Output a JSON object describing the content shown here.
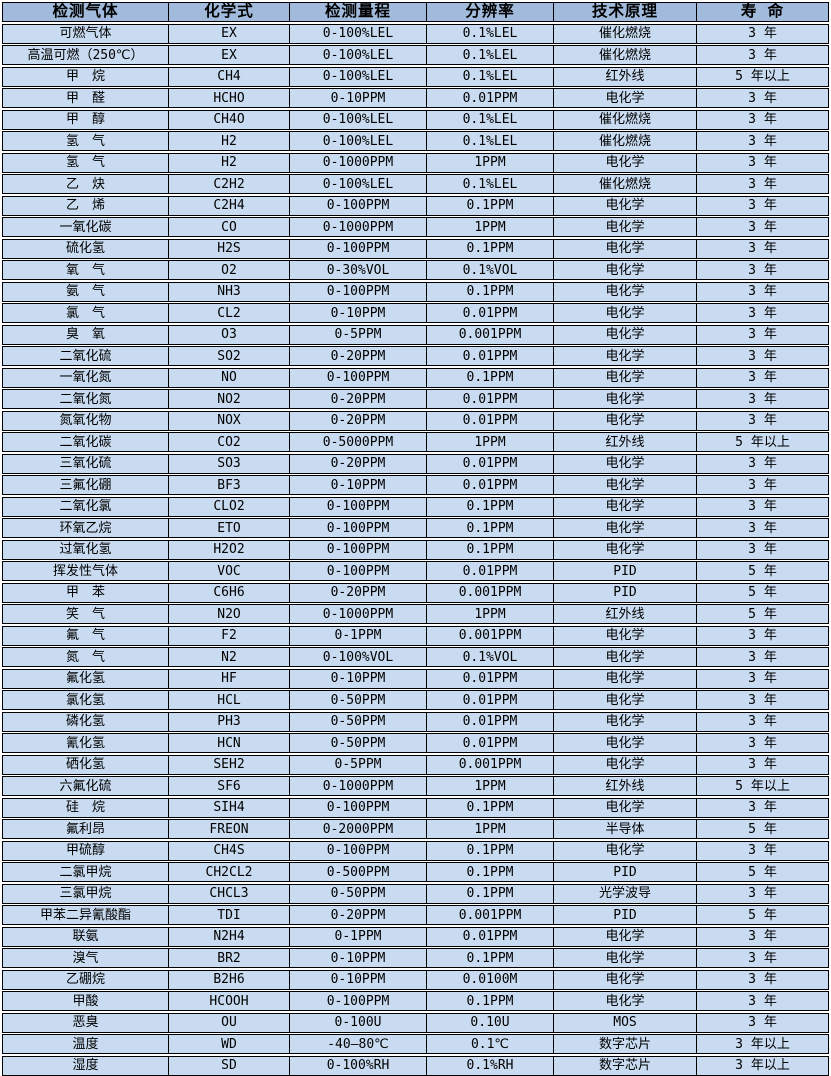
{
  "colors": {
    "header_bg": "#a2bbdc",
    "row_bg": "#c9dbf0",
    "border": "#000000",
    "gap": "#ffffff",
    "text": "#000000"
  },
  "table": {
    "column_keys": [
      "gas",
      "formula",
      "range",
      "resolution",
      "principle",
      "lifespan"
    ],
    "columns": [
      "检测气体",
      "化学式",
      "检测量程",
      "分辨率",
      "技术原理",
      "寿 命"
    ],
    "rows": [
      [
        "可燃气体",
        "EX",
        "0-100%LEL",
        "0.1%LEL",
        "催化燃烧",
        "3 年"
      ],
      [
        "高温可燃（250℃）",
        "EX",
        "0-100%LEL",
        "0.1%LEL",
        "催化燃烧",
        "3 年"
      ],
      [
        "甲　烷",
        "CH4",
        "0-100%LEL",
        "0.1%LEL",
        "红外线",
        "5 年以上"
      ],
      [
        "甲　醛",
        "HCHO",
        "0-10PPM",
        "0.01PPM",
        "电化学",
        "3 年"
      ],
      [
        "甲　醇",
        "CH4O",
        "0-100%LEL",
        "0.1%LEL",
        "催化燃烧",
        "3 年"
      ],
      [
        "氢　气",
        "H2",
        "0-100%LEL",
        "0.1%LEL",
        "催化燃烧",
        "3 年"
      ],
      [
        "氢　气",
        "H2",
        "0-1000PPM",
        "1PPM",
        "电化学",
        "3 年"
      ],
      [
        "乙　炔",
        "C2H2",
        "0-100%LEL",
        "0.1%LEL",
        "催化燃烧",
        "3 年"
      ],
      [
        "乙　烯",
        "C2H4",
        "0-100PPM",
        "0.1PPM",
        "电化学",
        "3 年"
      ],
      [
        "一氧化碳",
        "CO",
        "0-1000PPM",
        "1PPM",
        "电化学",
        "3 年"
      ],
      [
        "硫化氢",
        "H2S",
        "0-100PPM",
        "0.1PPM",
        "电化学",
        "3 年"
      ],
      [
        "氧　气",
        "O2",
        "0-30%VOL",
        "0.1%VOL",
        "电化学",
        "3 年"
      ],
      [
        "氨　气",
        "NH3",
        "0-100PPM",
        "0.1PPM",
        "电化学",
        "3 年"
      ],
      [
        "氯　气",
        "CL2",
        "0-10PPM",
        "0.01PPM",
        "电化学",
        "3 年"
      ],
      [
        "臭　氧",
        "O3",
        "0-5PPM",
        "0.001PPM",
        "电化学",
        "3 年"
      ],
      [
        "二氧化硫",
        "SO2",
        "0-20PPM",
        "0.01PPM",
        "电化学",
        "3 年"
      ],
      [
        "一氧化氮",
        "NO",
        "0-100PPM",
        "0.1PPM",
        "电化学",
        "3 年"
      ],
      [
        "二氧化氮",
        "NO2",
        "0-20PPM",
        "0.01PPM",
        "电化学",
        "3 年"
      ],
      [
        "氮氧化物",
        "NOX",
        "0-20PPM",
        "0.01PPM",
        "电化学",
        "3 年"
      ],
      [
        "二氧化碳",
        "CO2",
        "0-5000PPM",
        "1PPM",
        "红外线",
        "5 年以上"
      ],
      [
        "三氧化硫",
        "SO3",
        "0-20PPM",
        "0.01PPM",
        "电化学",
        "3 年"
      ],
      [
        "三氟化硼",
        "BF3",
        "0-10PPM",
        "0.01PPM",
        "电化学",
        "3 年"
      ],
      [
        "二氧化氯",
        "CLO2",
        "0-100PPM",
        "0.1PPM",
        "电化学",
        "3 年"
      ],
      [
        "环氧乙烷",
        "ETO",
        "0-100PPM",
        "0.1PPM",
        "电化学",
        "3 年"
      ],
      [
        "过氧化氢",
        "H2O2",
        "0-100PPM",
        "0.1PPM",
        "电化学",
        "3 年"
      ],
      [
        "挥发性气体",
        "VOC",
        "0-100PPM",
        "0.01PPM",
        "PID",
        "5 年"
      ],
      [
        "甲　苯",
        "C6H6",
        "0-20PPM",
        "0.001PPM",
        "PID",
        "5 年"
      ],
      [
        "笑　气",
        "N2O",
        "0-1000PPM",
        "1PPM",
        "红外线",
        "5 年"
      ],
      [
        "氟　气",
        "F2",
        "0-1PPM",
        "0.001PPM",
        "电化学",
        "3 年"
      ],
      [
        "氮　气",
        "N2",
        "0-100%VOL",
        "0.1%VOL",
        "电化学",
        "3 年"
      ],
      [
        "氟化氢",
        "HF",
        "0-10PPM",
        "0.01PPM",
        "电化学",
        "3 年"
      ],
      [
        "氯化氢",
        "HCL",
        "0-50PPM",
        "0.01PPM",
        "电化学",
        "3 年"
      ],
      [
        "磷化氢",
        "PH3",
        "0-50PPM",
        "0.01PPM",
        "电化学",
        "3 年"
      ],
      [
        "氰化氢",
        "HCN",
        "0-50PPM",
        "0.01PPM",
        "电化学",
        "3 年"
      ],
      [
        "硒化氢",
        "SEH2",
        "0-5PPM",
        "0.001PPM",
        "电化学",
        "3 年"
      ],
      [
        "六氟化硫",
        "SF6",
        "0-1000PPM",
        "1PPM",
        "红外线",
        "5 年以上"
      ],
      [
        "硅　烷",
        "SIH4",
        "0-100PPM",
        "0.1PPM",
        "电化学",
        "3 年"
      ],
      [
        "氟利昂",
        "FREON",
        "0-2000PPM",
        "1PPM",
        "半导体",
        "5 年"
      ],
      [
        "甲硫醇",
        "CH4S",
        "0-100PPM",
        "0.1PPM",
        "电化学",
        "3 年"
      ],
      [
        "二氯甲烷",
        "CH2CL2",
        "0-500PPM",
        "0.1PPM",
        "PID",
        "5 年"
      ],
      [
        "三氯甲烷",
        "CHCL3",
        "0-50PPM",
        "0.1PPM",
        "光学波导",
        "3 年"
      ],
      [
        "甲苯二异氰酸酯",
        "TDI",
        "0-20PPM",
        "0.001PPM",
        "PID",
        "5 年"
      ],
      [
        "联氨",
        "N2H4",
        "0-1PPM",
        "0.01PPM",
        "电化学",
        "3 年"
      ],
      [
        "溴气",
        "BR2",
        "0-10PPM",
        "0.1PPM",
        "电化学",
        "3 年"
      ],
      [
        "乙硼烷",
        "B2H6",
        "0-10PPM",
        "0.0100M",
        "电化学",
        "3 年"
      ],
      [
        "甲酸",
        "HCOOH",
        "0-100PPM",
        "0.1PPM",
        "电化学",
        "3 年"
      ],
      [
        "恶臭",
        "OU",
        "0-100U",
        "0.10U",
        "MOS",
        "3 年"
      ],
      [
        "温度",
        "WD",
        "-40—80℃",
        "0.1℃",
        "数字芯片",
        "3 年以上"
      ],
      [
        "湿度",
        "SD",
        "0-100%RH",
        "0.1%RH",
        "数字芯片",
        "3 年以上"
      ]
    ]
  }
}
